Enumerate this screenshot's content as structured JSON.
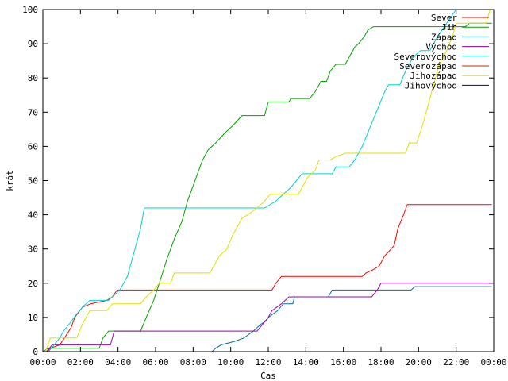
{
  "chart_data": {
    "type": "line",
    "xlabel": "Čas",
    "ylabel": "krát",
    "xlim": [
      0,
      24
    ],
    "ylim": [
      0,
      100
    ],
    "x_ticks": [
      0,
      2,
      4,
      6,
      8,
      10,
      12,
      14,
      16,
      18,
      20,
      22,
      24
    ],
    "x_tick_labels": [
      "00:00",
      "02:00",
      "04:00",
      "06:00",
      "08:00",
      "10:00",
      "12:00",
      "14:00",
      "16:00",
      "18:00",
      "20:00",
      "22:00",
      "00:00"
    ],
    "y_ticks": [
      0,
      10,
      20,
      30,
      40,
      50,
      60,
      70,
      80,
      90,
      100
    ],
    "y_tick_labels": [
      "0",
      "10",
      "20",
      "30",
      "40",
      "50",
      "60",
      "70",
      "80",
      "90",
      "100"
    ],
    "grid": false,
    "legend_position": "top-right",
    "series": [
      {
        "name": "Sever",
        "color": "#ff0000",
        "points": [
          [
            0.25,
            0
          ],
          [
            0.4,
            1
          ],
          [
            0.9,
            2
          ],
          [
            1.15,
            4
          ],
          [
            1.5,
            7
          ],
          [
            1.7,
            10
          ],
          [
            2.1,
            13
          ],
          [
            2.55,
            14
          ],
          [
            3.4,
            15
          ],
          [
            3.7,
            16
          ],
          [
            3.95,
            18
          ],
          [
            12.2,
            18
          ],
          [
            12.4,
            20
          ],
          [
            12.7,
            22
          ],
          [
            17.0,
            22
          ],
          [
            17.2,
            23
          ],
          [
            17.6,
            24
          ],
          [
            17.9,
            25
          ],
          [
            18.2,
            28
          ],
          [
            18.7,
            31
          ],
          [
            18.9,
            36
          ],
          [
            19.2,
            40
          ],
          [
            19.4,
            43
          ],
          [
            23.9,
            43
          ]
        ]
      },
      {
        "name": "Jih",
        "color": "#00a000",
        "points": [
          [
            0,
            0
          ],
          [
            0.3,
            1
          ],
          [
            3.0,
            1
          ],
          [
            3.2,
            4
          ],
          [
            3.5,
            6
          ],
          [
            5.2,
            6
          ],
          [
            5.5,
            10
          ],
          [
            5.9,
            15
          ],
          [
            6.2,
            20
          ],
          [
            6.6,
            27
          ],
          [
            7.0,
            33
          ],
          [
            7.4,
            38
          ],
          [
            7.7,
            44
          ],
          [
            8.1,
            50
          ],
          [
            8.5,
            56
          ],
          [
            8.8,
            59
          ],
          [
            9.2,
            61
          ],
          [
            9.7,
            64
          ],
          [
            10.1,
            66
          ],
          [
            10.6,
            69
          ],
          [
            11.8,
            69
          ],
          [
            12.0,
            73
          ],
          [
            13.1,
            73
          ],
          [
            13.2,
            74
          ],
          [
            14.2,
            74
          ],
          [
            14.5,
            76
          ],
          [
            14.8,
            79
          ],
          [
            15.1,
            79
          ],
          [
            15.3,
            82
          ],
          [
            15.6,
            84
          ],
          [
            16.1,
            84
          ],
          [
            16.4,
            87
          ],
          [
            16.6,
            89
          ],
          [
            16.8,
            90
          ],
          [
            17.1,
            92
          ],
          [
            17.3,
            94
          ],
          [
            17.6,
            95
          ],
          [
            22.5,
            95
          ],
          [
            22.7,
            96
          ],
          [
            23.9,
            96
          ]
        ]
      },
      {
        "name": "Západ",
        "color": "#0070a0",
        "points": [
          [
            9.0,
            0
          ],
          [
            9.2,
            1
          ],
          [
            9.5,
            2
          ],
          [
            10.2,
            3
          ],
          [
            10.7,
            4
          ],
          [
            11.2,
            6
          ],
          [
            11.6,
            8
          ],
          [
            11.9,
            9
          ],
          [
            12.0,
            10
          ],
          [
            12.5,
            12
          ],
          [
            12.8,
            14
          ],
          [
            13.3,
            14
          ],
          [
            13.4,
            16
          ],
          [
            15.2,
            16
          ],
          [
            15.4,
            18
          ],
          [
            19.6,
            18
          ],
          [
            19.8,
            19
          ],
          [
            23.9,
            19
          ]
        ]
      },
      {
        "name": "Východ",
        "color": "#a000b0",
        "points": [
          [
            0.2,
            0
          ],
          [
            0.5,
            2
          ],
          [
            3.6,
            2
          ],
          [
            3.8,
            6
          ],
          [
            11.4,
            6
          ],
          [
            11.7,
            8
          ],
          [
            12.0,
            10
          ],
          [
            12.2,
            12
          ],
          [
            12.7,
            14
          ],
          [
            13.1,
            16
          ],
          [
            17.5,
            16
          ],
          [
            17.8,
            18
          ],
          [
            18.0,
            20
          ],
          [
            23.9,
            20
          ]
        ]
      },
      {
        "name": "Severovýchod",
        "color": "#00d0d0",
        "points": [
          [
            0.3,
            0
          ],
          [
            0.6,
            2
          ],
          [
            0.9,
            4
          ],
          [
            1.1,
            6
          ],
          [
            1.4,
            8
          ],
          [
            1.8,
            11
          ],
          [
            2.1,
            13
          ],
          [
            2.5,
            15
          ],
          [
            3.5,
            15
          ],
          [
            3.7,
            16
          ],
          [
            4.1,
            18
          ],
          [
            4.5,
            22
          ],
          [
            4.9,
            30
          ],
          [
            5.2,
            36
          ],
          [
            5.4,
            42
          ],
          [
            11.8,
            42
          ],
          [
            12.4,
            44
          ],
          [
            12.8,
            46
          ],
          [
            13.2,
            48
          ],
          [
            13.5,
            50
          ],
          [
            13.8,
            52
          ],
          [
            15.4,
            52
          ],
          [
            15.6,
            54
          ],
          [
            16.3,
            54
          ],
          [
            16.6,
            56
          ],
          [
            16.8,
            58
          ],
          [
            17.0,
            60
          ],
          [
            17.3,
            64
          ],
          [
            17.6,
            68
          ],
          [
            17.9,
            72
          ],
          [
            18.2,
            76
          ],
          [
            18.4,
            78
          ],
          [
            19.0,
            78
          ],
          [
            19.3,
            82
          ],
          [
            19.7,
            86
          ],
          [
            20.1,
            88
          ],
          [
            20.6,
            88
          ],
          [
            21.0,
            92
          ],
          [
            21.5,
            96
          ],
          [
            22.0,
            100
          ]
        ]
      },
      {
        "name": "Severozápad",
        "color": "#c03000",
        "points": [
          [
            0,
            0
          ]
        ]
      },
      {
        "name": "Jihozápad",
        "color": "#e0e000",
        "points": [
          [
            0.15,
            0
          ],
          [
            0.4,
            4
          ],
          [
            1.8,
            4
          ],
          [
            2.1,
            8
          ],
          [
            2.5,
            12
          ],
          [
            3.4,
            12
          ],
          [
            3.7,
            14
          ],
          [
            5.2,
            14
          ],
          [
            5.5,
            16
          ],
          [
            5.9,
            18
          ],
          [
            6.2,
            20
          ],
          [
            6.8,
            20
          ],
          [
            7.0,
            23
          ],
          [
            8.9,
            23
          ],
          [
            9.1,
            25
          ],
          [
            9.4,
            28
          ],
          [
            9.8,
            30
          ],
          [
            10.1,
            34
          ],
          [
            10.3,
            36
          ],
          [
            10.6,
            39
          ],
          [
            10.9,
            40
          ],
          [
            11.4,
            42
          ],
          [
            11.8,
            44
          ],
          [
            12.1,
            46
          ],
          [
            13.6,
            46
          ],
          [
            13.8,
            48
          ],
          [
            14.1,
            51
          ],
          [
            14.5,
            53
          ],
          [
            14.7,
            56
          ],
          [
            15.3,
            56
          ],
          [
            15.6,
            57
          ],
          [
            16.1,
            58
          ],
          [
            19.3,
            58
          ],
          [
            19.5,
            61
          ],
          [
            19.9,
            61
          ],
          [
            20.2,
            66
          ],
          [
            20.5,
            72
          ],
          [
            20.8,
            78
          ],
          [
            21.1,
            84
          ],
          [
            21.5,
            88
          ],
          [
            21.8,
            92
          ],
          [
            22.0,
            96
          ],
          [
            22.3,
            96
          ],
          [
            23.6,
            96
          ],
          [
            23.8,
            100
          ]
        ]
      },
      {
        "name": "Jihovýchod",
        "color": "#000080",
        "points": [
          [
            0,
            0
          ]
        ]
      }
    ]
  }
}
